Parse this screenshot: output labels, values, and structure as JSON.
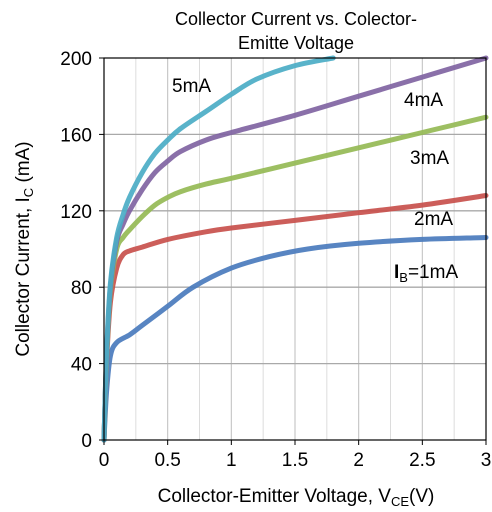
{
  "chart_data": {
    "type": "line",
    "title": [
      "Collector Current vs. Colector-",
      "Emitte Voltage"
    ],
    "xlabel": {
      "main": "Collector-Emitter Voltage, V",
      "sub": "CE",
      "unit": "(V)"
    },
    "ylabel": {
      "main": "Collector Current, I",
      "sub": "C",
      "unit": " (mA)"
    },
    "xlim": [
      0,
      3
    ],
    "ylim": [
      0,
      200
    ],
    "xticks": [
      0,
      0.5,
      1,
      1.5,
      2,
      2.5,
      3
    ],
    "xtick_labels": [
      "0",
      "0.5",
      "1",
      "1.5",
      "2",
      "2.5",
      "3"
    ],
    "yticks": [
      0,
      40,
      80,
      120,
      160,
      200
    ],
    "ytick_labels": [
      "0",
      "40",
      "80",
      "120",
      "160",
      "200"
    ],
    "grid": true,
    "series": [
      {
        "label_prefix": "I",
        "label_sub": "B",
        "label_suffix": "=1mA",
        "color": "#4a7bbd",
        "x": [
          0,
          0.02,
          0.05,
          0.1,
          0.2,
          0.3,
          0.5,
          0.7,
          1.0,
          1.3,
          1.6,
          2.0,
          2.5,
          3.0
        ],
        "y": [
          0,
          25,
          44,
          51,
          55,
          60,
          70,
          80,
          90,
          96,
          100,
          103,
          105,
          106
        ]
      },
      {
        "label": "2mA",
        "color": "#c8504c",
        "x": [
          0,
          0.02,
          0.05,
          0.1,
          0.15,
          0.2,
          0.3,
          0.5,
          0.8,
          1.0,
          1.5,
          2.0,
          2.5,
          3.0
        ],
        "y": [
          0,
          40,
          72,
          90,
          97,
          99,
          101,
          105,
          109,
          111,
          115,
          119,
          123,
          128
        ]
      },
      {
        "label": "3mA",
        "color": "#95ba55",
        "x": [
          0,
          0.02,
          0.05,
          0.1,
          0.15,
          0.2,
          0.3,
          0.4,
          0.5,
          0.6,
          0.8,
          1.0,
          1.5,
          2.0,
          2.5,
          3.0
        ],
        "y": [
          0,
          42,
          78,
          100,
          106,
          110,
          117,
          123,
          127,
          130,
          134,
          137,
          145,
          153,
          161,
          169
        ]
      },
      {
        "label": "4mA",
        "color": "#8064a2",
        "x": [
          0,
          0.02,
          0.05,
          0.1,
          0.15,
          0.2,
          0.3,
          0.4,
          0.5,
          0.6,
          0.8,
          1.0,
          1.5,
          2.0,
          2.5,
          3.0
        ],
        "y": [
          0,
          44,
          80,
          104,
          113,
          120,
          131,
          140,
          146,
          151,
          157,
          161,
          170,
          180,
          190,
          200
        ]
      },
      {
        "label": "5mA",
        "color": "#4bacc6",
        "x": [
          0,
          0.02,
          0.05,
          0.1,
          0.15,
          0.2,
          0.3,
          0.4,
          0.5,
          0.6,
          0.8,
          1.0,
          1.2,
          1.5,
          1.8
        ],
        "y": [
          0,
          45,
          82,
          106,
          118,
          127,
          140,
          150,
          157,
          163,
          172,
          181,
          189,
          196,
          200
        ]
      }
    ]
  }
}
